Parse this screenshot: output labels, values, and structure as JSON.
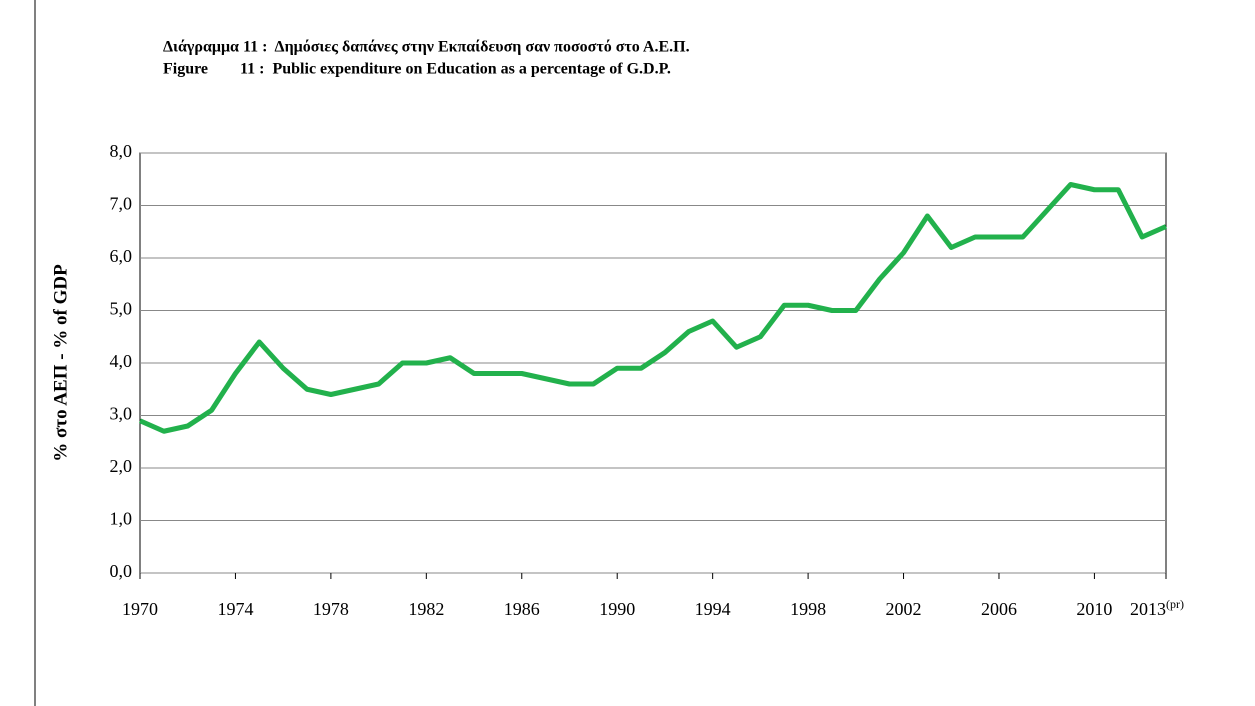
{
  "chart_data": {
    "type": "line",
    "title": "Διάγραμμα 11 :  Δημόσιες δαπάνες στην Εκπαίδευση σαν ποσοστό στο Α.Ε.Π.",
    "subtitle": "Figure        11 :  Public expenditure on Education as a percentage of G.D.P.",
    "y_label": "% στο ΑΕΠ - % of GDP",
    "x": [
      1970,
      1971,
      1972,
      1973,
      1974,
      1975,
      1976,
      1977,
      1978,
      1979,
      1980,
      1981,
      1982,
      1983,
      1984,
      1985,
      1986,
      1987,
      1988,
      1989,
      1990,
      1991,
      1992,
      1993,
      1994,
      1995,
      1996,
      1997,
      1998,
      1999,
      2000,
      2001,
      2002,
      2003,
      2004,
      2005,
      2006,
      2007,
      2008,
      2009,
      2010,
      2011,
      2012,
      2013
    ],
    "series": [
      {
        "color": "#22b14c",
        "values": [
          2.9,
          2.7,
          2.8,
          3.1,
          3.8,
          4.4,
          3.9,
          3.5,
          3.4,
          3.5,
          3.6,
          4.0,
          4.0,
          4.1,
          3.8,
          3.8,
          3.8,
          3.7,
          3.6,
          3.6,
          3.9,
          3.9,
          4.2,
          4.6,
          4.8,
          4.3,
          4.5,
          5.1,
          5.1,
          5.0,
          5.0,
          5.6,
          6.1,
          6.8,
          6.2,
          6.4,
          6.4,
          6.4,
          6.9,
          7.4,
          7.3,
          7.3,
          6.4,
          6.6
        ]
      }
    ],
    "xlim": [
      1970,
      2013
    ],
    "xticks": [
      1970,
      1974,
      1978,
      1982,
      1986,
      1990,
      1994,
      1998,
      2002,
      2006,
      2010,
      2013
    ],
    "last_xtick_note": "(pr)",
    "ylim": [
      0,
      8
    ],
    "yticks": [
      {
        "value": 0,
        "label": "0,0"
      },
      {
        "value": 1,
        "label": "1,0"
      },
      {
        "value": 2,
        "label": "2,0"
      },
      {
        "value": 3,
        "label": "3,0"
      },
      {
        "value": 4,
        "label": "4,0"
      },
      {
        "value": 5,
        "label": "5,0"
      },
      {
        "value": 6,
        "label": "6,0"
      },
      {
        "value": 7,
        "label": "7,0"
      },
      {
        "value": 8,
        "label": "8,0"
      }
    ],
    "grid": true
  }
}
